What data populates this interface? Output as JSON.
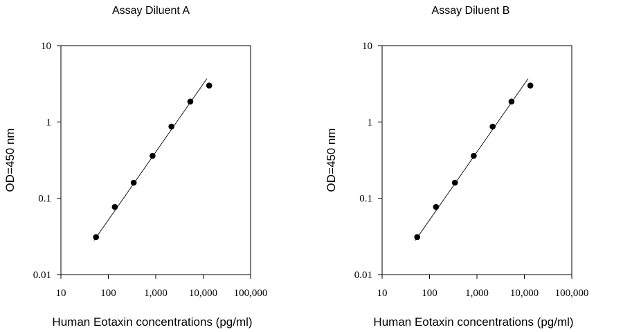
{
  "chart_data": [
    {
      "type": "scatter",
      "title": "Assay Diluent A",
      "xlabel": "Human Eotaxin concentrations (pg/ml)",
      "ylabel": "OD=450 nm",
      "x_scale": "log",
      "y_scale": "log",
      "xlim": [
        10,
        100000
      ],
      "ylim": [
        0.01,
        10
      ],
      "x_ticks": [
        10,
        100,
        1000,
        10000,
        100000
      ],
      "x_tick_labels": [
        "10",
        "100",
        "1,000",
        "10,000",
        "100,000"
      ],
      "y_ticks": [
        0.01,
        0.1,
        1,
        10
      ],
      "y_tick_labels": [
        "0.01",
        "0.1",
        "1",
        "10"
      ],
      "grid": false,
      "series": [
        {
          "x": [
            55,
            137,
            343,
            857,
            2143,
            5357,
            13393
          ],
          "y": [
            0.031,
            0.077,
            0.16,
            0.36,
            0.87,
            1.85,
            3.0
          ]
        }
      ],
      "fit_line": {
        "x": [
          50,
          12000
        ],
        "y": [
          0.028,
          3.7
        ]
      }
    },
    {
      "type": "scatter",
      "title": "Assay Diluent B",
      "xlabel": "Human Eotaxin concentrations (pg/ml)",
      "ylabel": "OD=450 nm",
      "x_scale": "log",
      "y_scale": "log",
      "xlim": [
        10,
        100000
      ],
      "ylim": [
        0.01,
        10
      ],
      "x_ticks": [
        10,
        100,
        1000,
        10000,
        100000
      ],
      "x_tick_labels": [
        "10",
        "100",
        "1,000",
        "10,000",
        "100,000"
      ],
      "y_ticks": [
        0.01,
        0.1,
        1,
        10
      ],
      "y_tick_labels": [
        "0.01",
        "0.1",
        "1",
        "10"
      ],
      "grid": false,
      "series": [
        {
          "x": [
            55,
            137,
            343,
            857,
            2143,
            5357,
            13393
          ],
          "y": [
            0.031,
            0.077,
            0.16,
            0.36,
            0.87,
            1.85,
            3.0
          ]
        }
      ],
      "fit_line": {
        "x": [
          50,
          12000
        ],
        "y": [
          0.028,
          3.7
        ]
      }
    }
  ]
}
